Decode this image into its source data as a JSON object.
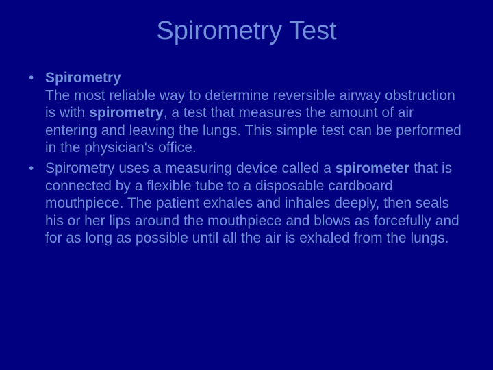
{
  "slide": {
    "background_color": "#000080",
    "text_color": "#7090d8",
    "title": {
      "text": "Spirometry Test",
      "fontsize": 38
    },
    "body_fontsize": 21,
    "bullets": [
      {
        "heading": "Spirometry",
        "runs": [
          {
            "text": "The most reliable way to determine reversible airway obstruction is with ",
            "bold": false
          },
          {
            "text": "spirometry",
            "bold": true
          },
          {
            "text": ", a test that measures the amount of air entering and leaving the lungs. This simple test can be performed in the physician's office.",
            "bold": false
          }
        ]
      },
      {
        "heading": null,
        "runs": [
          {
            "text": "Spirometry uses a measuring device called a ",
            "bold": false
          },
          {
            "text": "spirometer",
            "bold": true
          },
          {
            "text": " that is connected by a flexible tube to a disposable cardboard mouthpiece. The patient exhales and inhales deeply, then seals his or her lips around the mouthpiece and blows as forcefully and for as long as possible until all the air is exhaled from the lungs.",
            "bold": false
          }
        ]
      }
    ]
  }
}
